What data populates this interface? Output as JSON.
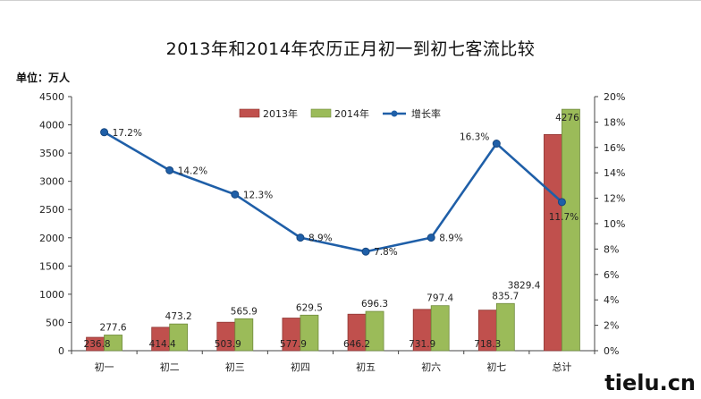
{
  "chart_data": {
    "type": "bar",
    "title": "2013年和2014年农历正月初一到初七客流比较",
    "unit_label": "单位：万人",
    "categories": [
      "初一",
      "初二",
      "初三",
      "初四",
      "初五",
      "初六",
      "初七",
      "总计"
    ],
    "series": [
      {
        "name": "2013年",
        "type": "bar",
        "axis": "left",
        "color": "#c0504d",
        "values": [
          236.8,
          414.4,
          503.9,
          577.9,
          646.2,
          731.9,
          718.3,
          3829.4
        ],
        "labels": [
          "236.8",
          "414.4",
          "503.9",
          "577.9",
          "646.2",
          "731.9",
          "718.3",
          "3829.4"
        ]
      },
      {
        "name": "2014年",
        "type": "bar",
        "axis": "left",
        "color": "#9bbb59",
        "values": [
          277.6,
          473.2,
          565.9,
          629.5,
          696.3,
          797.4,
          835.7,
          4276
        ],
        "labels": [
          "277.6",
          "473.2",
          "565.9",
          "629.5",
          "696.3",
          "797.4",
          "835.7",
          "4276"
        ]
      },
      {
        "name": "增长率",
        "type": "line",
        "axis": "right",
        "color": "#1f5fa8",
        "values": [
          17.2,
          14.2,
          12.3,
          8.9,
          7.8,
          8.9,
          16.3,
          11.7
        ],
        "labels": [
          "17.2%",
          "14.2%",
          "12.3%",
          "8.9%",
          "7.8%",
          "8.9%",
          "16.3%",
          "11.7%"
        ]
      }
    ],
    "y_left": {
      "min": 0,
      "max": 4500,
      "step": 500,
      "ticks": [
        "0",
        "500",
        "1000",
        "1500",
        "2000",
        "2500",
        "3000",
        "3500",
        "4000",
        "4500"
      ]
    },
    "y_right": {
      "min": 0,
      "max": 20,
      "step": 2,
      "ticks": [
        "0%",
        "2%",
        "4%",
        "6%",
        "8%",
        "10%",
        "12%",
        "14%",
        "16%",
        "18%",
        "20%"
      ]
    },
    "legend_position": "top-center",
    "grid": false
  },
  "watermark": "tielu.cn"
}
